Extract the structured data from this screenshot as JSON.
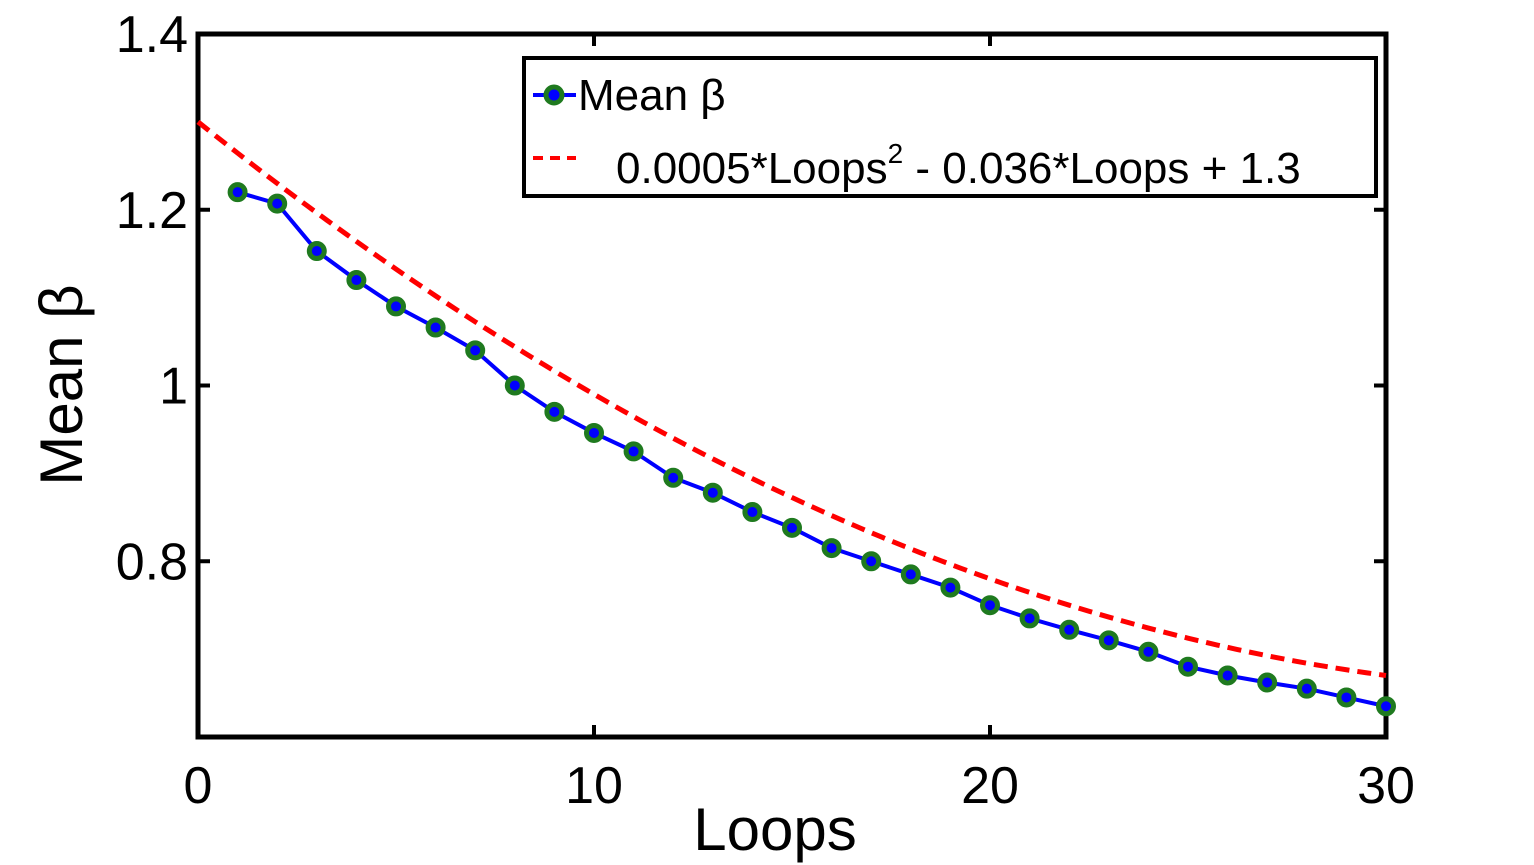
{
  "chart_data": {
    "type": "line",
    "xlabel": "Loops",
    "ylabel": "Mean β",
    "xlim": [
      0,
      30
    ],
    "ylim": [
      0.6,
      1.4
    ],
    "xticks": [
      0,
      10,
      20,
      30
    ],
    "xtick_labels": [
      "0",
      "10",
      "20",
      "30"
    ],
    "yticks": [
      0.8,
      1.0,
      1.2,
      1.4
    ],
    "ytick_labels": [
      "0.8",
      "1",
      "1.2",
      "1.4"
    ],
    "grid": false,
    "legend_position": "top-right",
    "series": [
      {
        "name": "Mean β",
        "line_color": "#0000ff",
        "marker_color": "#1f7a1f",
        "marker_center_color": "#0000ff",
        "style": "solid-markers",
        "x": [
          1,
          2,
          3,
          4,
          5,
          6,
          7,
          8,
          9,
          10,
          11,
          12,
          13,
          14,
          15,
          16,
          17,
          18,
          19,
          20,
          21,
          22,
          23,
          24,
          25,
          26,
          27,
          28,
          29,
          30
        ],
        "y": [
          1.22,
          1.207,
          1.153,
          1.12,
          1.09,
          1.066,
          1.04,
          1.0,
          0.97,
          0.946,
          0.925,
          0.895,
          0.878,
          0.856,
          0.838,
          0.815,
          0.8,
          0.785,
          0.77,
          0.75,
          0.735,
          0.722,
          0.71,
          0.697,
          0.68,
          0.67,
          0.662,
          0.655,
          0.645,
          0.635
        ]
      },
      {
        "name_parts": [
          "0.0005*Loops",
          "2",
          " - 0.036*Loops + 1.3"
        ],
        "line_color": "#ff0000",
        "style": "dashed",
        "formula": {
          "a": 0.0005,
          "b": -0.036,
          "c": 1.3
        },
        "x_range": [
          0,
          30
        ]
      }
    ]
  }
}
